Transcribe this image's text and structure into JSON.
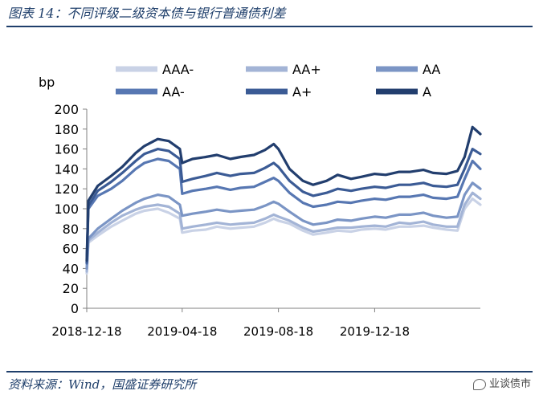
{
  "header": {
    "title": "图表 14：不同评级二级资本债与银行普通债利差"
  },
  "footer": {
    "source": "资料来源：Wind，国盛证券研究所",
    "brand": "业谈债市"
  },
  "chart_data": {
    "type": "line",
    "ylabel": "bp",
    "ylim": [
      0,
      200
    ],
    "yticks": [
      0,
      20,
      40,
      60,
      80,
      100,
      120,
      140,
      160,
      180,
      200
    ],
    "xlim": [
      "2018-12-18",
      "2020-04-30"
    ],
    "xticks": [
      "2018-12-18",
      "2019-04-18",
      "2019-08-18",
      "2019-12-18"
    ],
    "legend_position": "top",
    "grid": false,
    "x": [
      "2018-12-18",
      "2018-12-20",
      "2019-01-01",
      "2019-01-18",
      "2019-02-01",
      "2019-02-18",
      "2019-03-01",
      "2019-03-18",
      "2019-04-01",
      "2019-04-15",
      "2019-04-18",
      "2019-05-01",
      "2019-05-18",
      "2019-06-01",
      "2019-06-18",
      "2019-07-01",
      "2019-07-18",
      "2019-08-01",
      "2019-08-12",
      "2019-08-18",
      "2019-09-01",
      "2019-09-18",
      "2019-10-01",
      "2019-10-18",
      "2019-11-01",
      "2019-11-18",
      "2019-12-01",
      "2019-12-18",
      "2020-01-01",
      "2020-01-18",
      "2020-02-01",
      "2020-02-18",
      "2020-03-01",
      "2020-03-18",
      "2020-04-01",
      "2020-04-10",
      "2020-04-20",
      "2020-04-30"
    ],
    "series": [
      {
        "name": "AAA-",
        "color": "#c9d2e6",
        "values": [
          35,
          66,
          73,
          82,
          88,
          95,
          98,
          100,
          96,
          90,
          76,
          78,
          79,
          82,
          80,
          81,
          82,
          86,
          90,
          88,
          85,
          78,
          74,
          76,
          78,
          77,
          79,
          80,
          79,
          82,
          82,
          83,
          81,
          79,
          78,
          100,
          110,
          104
        ]
      },
      {
        "name": "AA+",
        "color": "#a3b4d6",
        "values": [
          37,
          68,
          76,
          86,
          93,
          99,
          102,
          104,
          102,
          95,
          80,
          82,
          84,
          86,
          84,
          85,
          86,
          90,
          94,
          92,
          88,
          81,
          77,
          79,
          81,
          81,
          82,
          83,
          82,
          86,
          85,
          87,
          84,
          82,
          82,
          104,
          116,
          110
        ]
      },
      {
        "name": "AA",
        "color": "#7b95c5",
        "values": [
          40,
          70,
          80,
          90,
          98,
          106,
          110,
          114,
          112,
          104,
          93,
          95,
          97,
          99,
          97,
          98,
          99,
          103,
          107,
          105,
          97,
          88,
          84,
          86,
          89,
          88,
          90,
          92,
          91,
          94,
          94,
          96,
          93,
          91,
          92,
          114,
          126,
          120
        ]
      },
      {
        "name": "AA-",
        "color": "#5777b2",
        "values": [
          45,
          100,
          113,
          120,
          128,
          140,
          146,
          150,
          148,
          140,
          115,
          118,
          120,
          122,
          119,
          121,
          122,
          127,
          131,
          128,
          116,
          106,
          102,
          104,
          107,
          106,
          108,
          110,
          109,
          112,
          112,
          114,
          111,
          110,
          112,
          130,
          148,
          140
        ]
      },
      {
        "name": "A+",
        "color": "#3b5b95",
        "values": [
          46,
          103,
          118,
          127,
          136,
          148,
          155,
          160,
          158,
          150,
          127,
          130,
          133,
          136,
          133,
          135,
          136,
          141,
          146,
          142,
          128,
          117,
          113,
          116,
          120,
          118,
          120,
          122,
          121,
          124,
          124,
          126,
          123,
          122,
          124,
          140,
          160,
          155
        ]
      },
      {
        "name": "A",
        "color": "#223e6e",
        "values": [
          48,
          108,
          123,
          133,
          142,
          156,
          163,
          170,
          168,
          160,
          146,
          150,
          152,
          154,
          150,
          152,
          154,
          159,
          165,
          160,
          140,
          128,
          124,
          128,
          134,
          130,
          132,
          135,
          134,
          137,
          137,
          139,
          136,
          135,
          138,
          152,
          182,
          175
        ]
      }
    ]
  }
}
